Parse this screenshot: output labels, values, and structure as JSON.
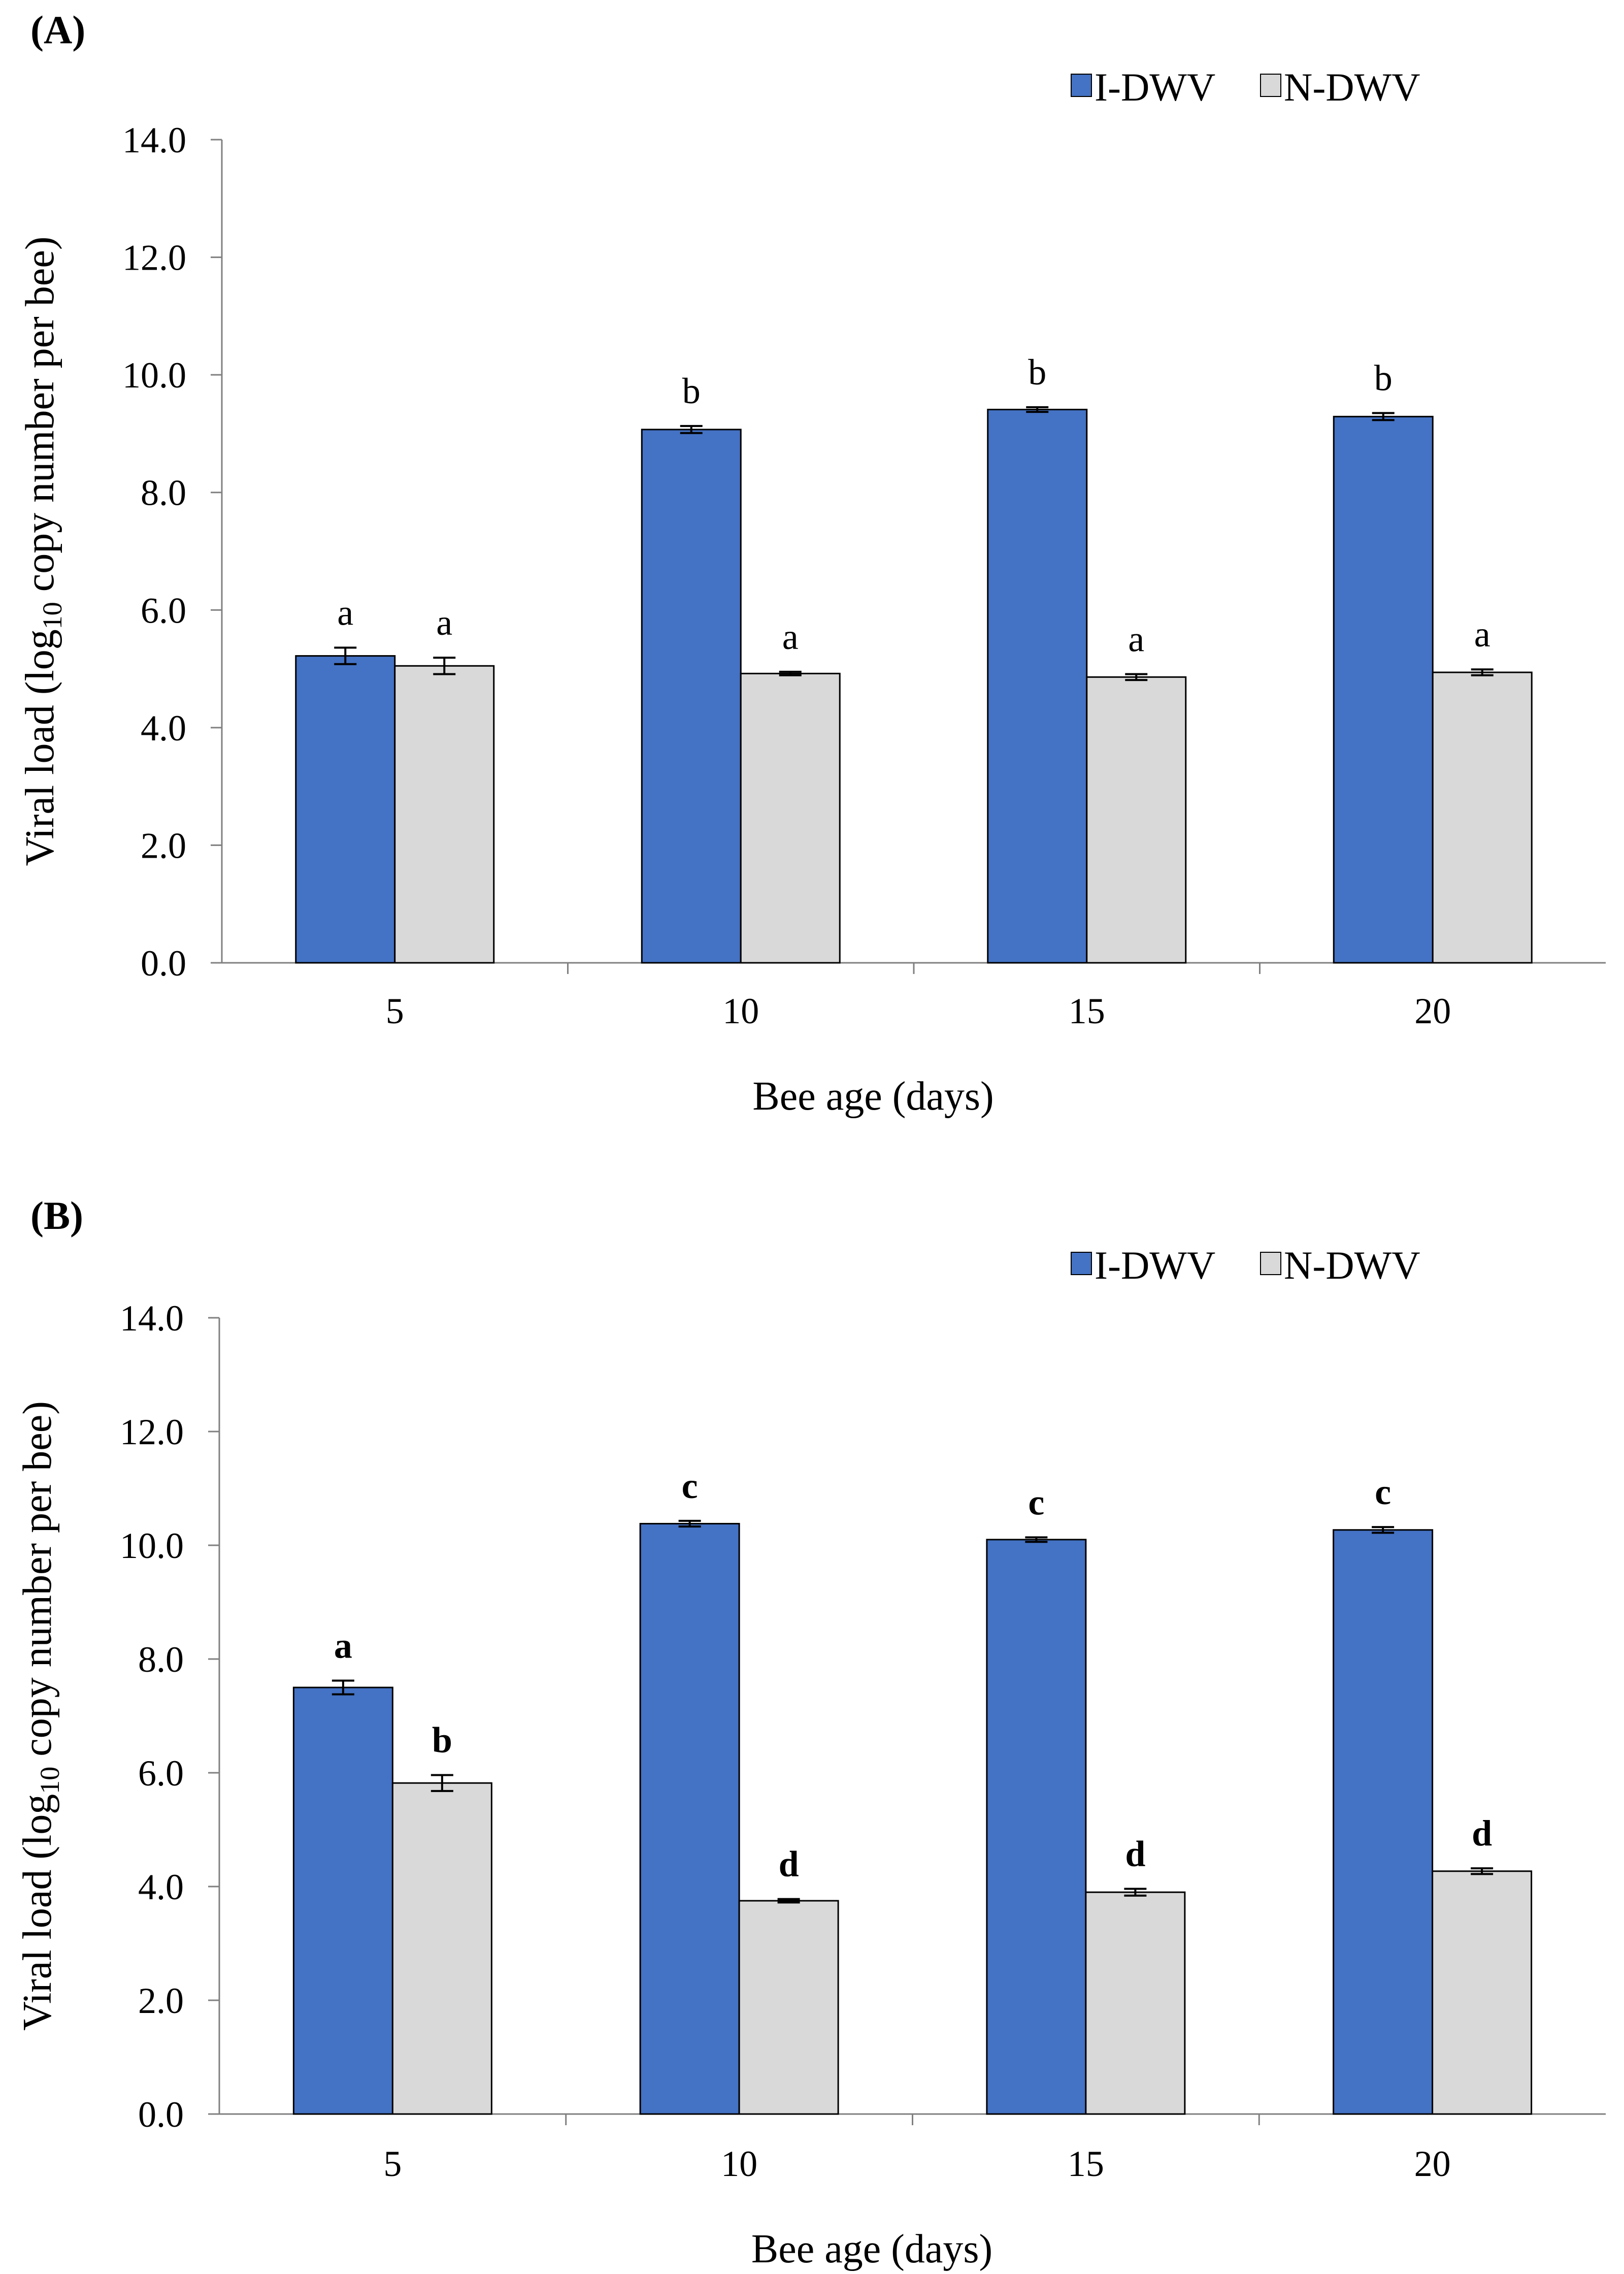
{
  "chart_data": [
    {
      "type": "bar",
      "panel_label": "(A)",
      "categories": [
        "5",
        "10",
        "15",
        "20"
      ],
      "series": [
        {
          "name": "I-DWV",
          "color": "#4472C4",
          "values": [
            5.22,
            9.07,
            9.41,
            9.29
          ],
          "errors": [
            0.14,
            0.06,
            0.04,
            0.06
          ],
          "labels": [
            "a",
            "b",
            "b",
            "b"
          ]
        },
        {
          "name": "N-DWV",
          "color": "#D9D9D9",
          "values": [
            5.05,
            4.92,
            4.86,
            4.94
          ],
          "errors": [
            0.14,
            0.03,
            0.05,
            0.05
          ],
          "labels": [
            "a",
            "a",
            "a",
            "a"
          ]
        }
      ],
      "labels_bold": false,
      "xlabel": "Bee age (days)",
      "ylabel": {
        "prefix": "Viral load (log",
        "subscript": "10",
        "suffix": " copy number per bee)"
      },
      "ylim": [
        0,
        14
      ],
      "yticks": [
        "0.0",
        "2.0",
        "4.0",
        "6.0",
        "8.0",
        "10.0",
        "12.0",
        "14.0"
      ],
      "legend_position": "top-right",
      "grid": false
    },
    {
      "type": "bar",
      "panel_label": "(B)",
      "categories": [
        "5",
        "10",
        "15",
        "20"
      ],
      "series": [
        {
          "name": "I-DWV",
          "color": "#4472C4",
          "values": [
            7.5,
            10.38,
            10.1,
            10.27
          ],
          "errors": [
            0.12,
            0.05,
            0.04,
            0.05
          ],
          "labels": [
            "a",
            "c",
            "c",
            "c"
          ]
        },
        {
          "name": "N-DWV",
          "color": "#D9D9D9",
          "values": [
            5.82,
            3.75,
            3.9,
            4.27
          ],
          "errors": [
            0.14,
            0.03,
            0.06,
            0.05
          ],
          "labels": [
            "b",
            "d",
            "d",
            "d"
          ]
        }
      ],
      "labels_bold": true,
      "xlabel": "Bee age (days)",
      "ylabel": {
        "prefix": "Viral load (log",
        "subscript": "10",
        "suffix": " copy number per bee)"
      },
      "ylim": [
        0,
        14
      ],
      "yticks": [
        "0.0",
        "2.0",
        "4.0",
        "6.0",
        "8.0",
        "10.0",
        "12.0",
        "14.0"
      ],
      "legend_position": "top-right",
      "grid": false
    }
  ]
}
